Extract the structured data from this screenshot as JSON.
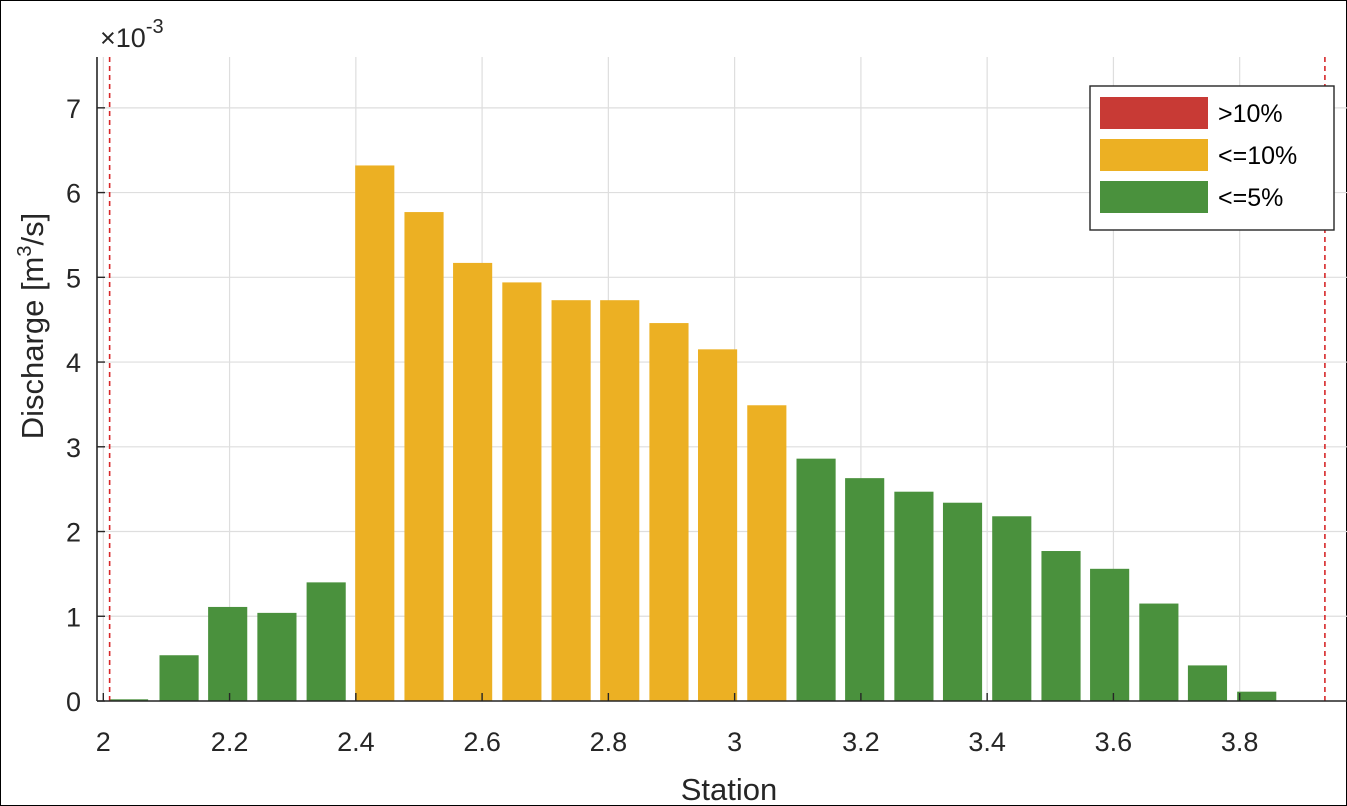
{
  "chart_data": {
    "type": "bar",
    "xlabel": "Station",
    "ylabel_main": "Discharge [m",
    "ylabel_sup": "3",
    "ylabel_end": "/s]",
    "y_multiplier_base": "×10",
    "y_multiplier_exp": "-3",
    "xlim": [
      1.99,
      3.97
    ],
    "ylim": [
      0,
      7.6
    ],
    "x_ticks": [
      {
        "value": 2.0,
        "label": "2"
      },
      {
        "value": 2.2,
        "label": "2.2"
      },
      {
        "value": 2.4,
        "label": "2.4"
      },
      {
        "value": 2.6,
        "label": "2.6"
      },
      {
        "value": 2.8,
        "label": "2.8"
      },
      {
        "value": 3.0,
        "label": "3"
      },
      {
        "value": 3.2,
        "label": "3.2"
      },
      {
        "value": 3.4,
        "label": "3.4"
      },
      {
        "value": 3.6,
        "label": "3.6"
      },
      {
        "value": 3.8,
        "label": "3.8"
      }
    ],
    "y_ticks": [
      {
        "value": 0,
        "label": "0"
      },
      {
        "value": 1,
        "label": "1"
      },
      {
        "value": 2,
        "label": "2"
      },
      {
        "value": 3,
        "label": "3"
      },
      {
        "value": 4,
        "label": "4"
      },
      {
        "value": 5,
        "label": "5"
      },
      {
        "value": 6,
        "label": "6"
      },
      {
        "value": 7,
        "label": "7"
      }
    ],
    "grid": true,
    "legend_position": "top-right",
    "legend": [
      {
        "label": ">10%",
        "color": "#c83a35"
      },
      {
        "label": "<=10%",
        "color": "#ecb023"
      },
      {
        "label": "<=5%",
        "color": "#4a913d"
      }
    ],
    "reference_lines": [
      2.01,
      3.935
    ],
    "reference_line_color": "#d62728",
    "bar_width": 0.062,
    "bars": [
      {
        "x": 2.04,
        "value": 0.02,
        "color": "#4a913d"
      },
      {
        "x": 2.12,
        "value": 0.54,
        "color": "#4a913d"
      },
      {
        "x": 2.197,
        "value": 1.11,
        "color": "#4a913d"
      },
      {
        "x": 2.275,
        "value": 1.04,
        "color": "#4a913d"
      },
      {
        "x": 2.353,
        "value": 1.4,
        "color": "#4a913d"
      },
      {
        "x": 2.43,
        "value": 6.32,
        "color": "#ecb023"
      },
      {
        "x": 2.508,
        "value": 5.77,
        "color": "#ecb023"
      },
      {
        "x": 2.585,
        "value": 5.17,
        "color": "#ecb023"
      },
      {
        "x": 2.663,
        "value": 4.94,
        "color": "#ecb023"
      },
      {
        "x": 2.741,
        "value": 4.73,
        "color": "#ecb023"
      },
      {
        "x": 2.818,
        "value": 4.73,
        "color": "#ecb023"
      },
      {
        "x": 2.896,
        "value": 4.46,
        "color": "#ecb023"
      },
      {
        "x": 2.973,
        "value": 4.15,
        "color": "#ecb023"
      },
      {
        "x": 3.051,
        "value": 3.49,
        "color": "#ecb023"
      },
      {
        "x": 3.129,
        "value": 2.86,
        "color": "#4a913d"
      },
      {
        "x": 3.206,
        "value": 2.63,
        "color": "#4a913d"
      },
      {
        "x": 3.284,
        "value": 2.47,
        "color": "#4a913d"
      },
      {
        "x": 3.361,
        "value": 2.34,
        "color": "#4a913d"
      },
      {
        "x": 3.439,
        "value": 2.18,
        "color": "#4a913d"
      },
      {
        "x": 3.517,
        "value": 1.77,
        "color": "#4a913d"
      },
      {
        "x": 3.594,
        "value": 1.56,
        "color": "#4a913d"
      },
      {
        "x": 3.672,
        "value": 1.15,
        "color": "#4a913d"
      },
      {
        "x": 3.749,
        "value": 0.42,
        "color": "#4a913d"
      },
      {
        "x": 3.827,
        "value": 0.11,
        "color": "#4a913d"
      }
    ]
  }
}
